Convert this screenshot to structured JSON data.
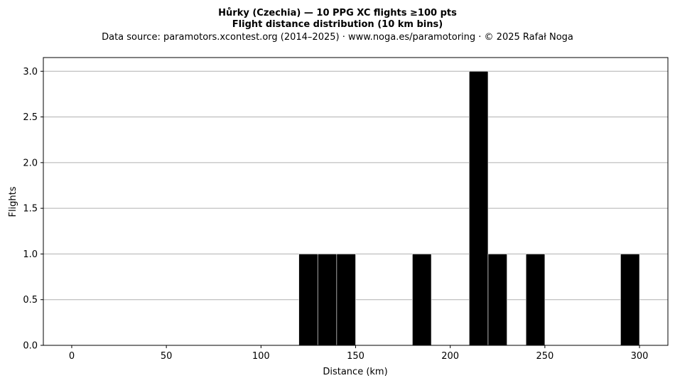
{
  "chart_data": {
    "type": "bar",
    "title_lines": [
      "Hůrky (Czechia)  —  10 PPG XC flights ≥100 pts",
      "Flight distance distribution (10 km bins)"
    ],
    "subtitle": "Data source: paramotors.xcontest.org (2014–2025)  ·  www.noga.es/paramotoring  ·  © 2025 Rafał Noga",
    "xlabel": "Distance (km)",
    "ylabel": "Flights",
    "bin_width": 10,
    "bins": [
      {
        "start": 120,
        "count": 1
      },
      {
        "start": 130,
        "count": 1
      },
      {
        "start": 140,
        "count": 1
      },
      {
        "start": 180,
        "count": 1
      },
      {
        "start": 210,
        "count": 3
      },
      {
        "start": 220,
        "count": 1
      },
      {
        "start": 240,
        "count": 1
      },
      {
        "start": 290,
        "count": 1
      }
    ],
    "xlim": [
      -15,
      315
    ],
    "ylim": [
      0,
      3.15
    ],
    "xticks": [
      0,
      50,
      100,
      150,
      200,
      250,
      300
    ],
    "xtick_labels": [
      "0",
      "50",
      "100",
      "150",
      "200",
      "250",
      "300"
    ],
    "yticks": [
      0,
      0.5,
      1,
      1.5,
      2,
      2.5,
      3
    ],
    "ytick_labels": [
      "0.0",
      "0.5",
      "1.0",
      "1.5",
      "2.0",
      "2.5",
      "3.0"
    ],
    "grid": "y",
    "bar_color": "#000000",
    "bar_edge_color": "#ffffff",
    "grid_color": "#b0b0b0"
  }
}
